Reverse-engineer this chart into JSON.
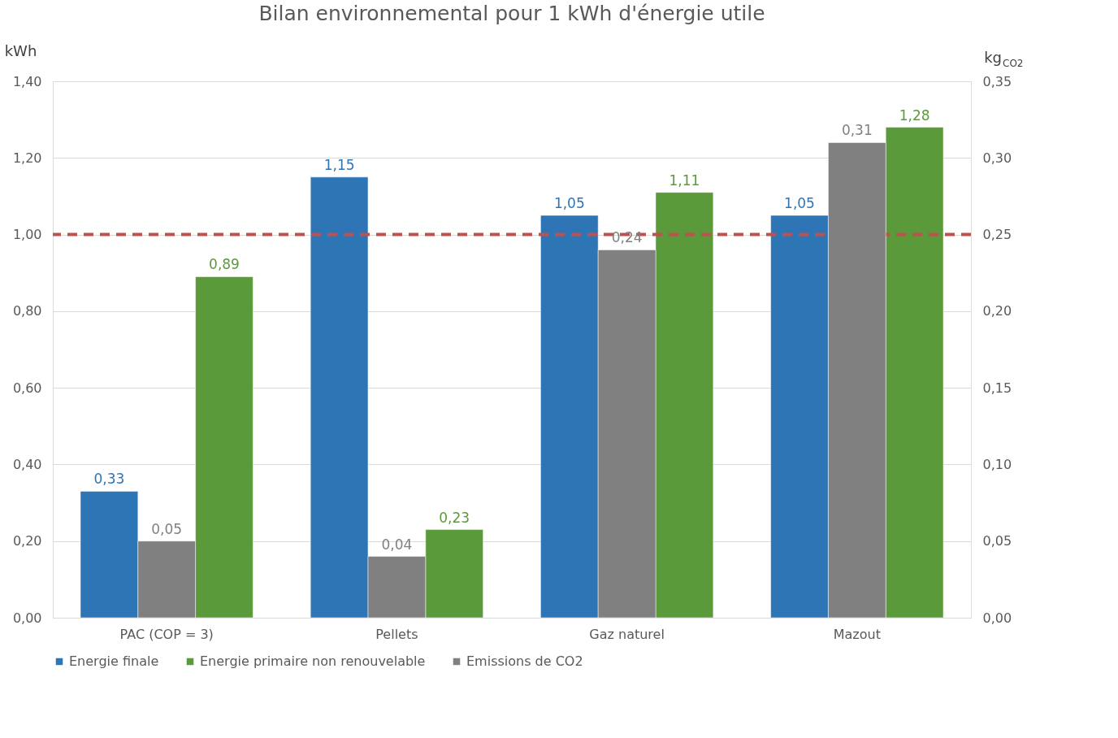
{
  "chart_data": {
    "type": "bar",
    "title": "Bilan environnemental pour 1 kWh d'énergie utile",
    "ylabel": "kWh",
    "y2label": "kg$_{CO2}$",
    "categories": [
      "PAC (COP = 3)",
      "Pellets",
      "Gaz naturel",
      "Mazout"
    ],
    "series": [
      {
        "name": "Energie finale",
        "color": "#2e75b6",
        "values": [
          0.33,
          1.15,
          1.05,
          1.05
        ],
        "value_labels": [
          "0,33",
          "1,15",
          "1,05",
          "1,05"
        ]
      },
      {
        "name": "Energie primaire non renouvelable",
        "color": "#5b9a3a",
        "values": [
          0.89,
          0.23,
          1.11,
          1.28
        ],
        "value_labels": [
          "0,89",
          "0,23",
          "1,11",
          "1,28"
        ]
      },
      {
        "name": "Emissions de CO2",
        "color": "#808080",
        "values": [
          0.05,
          0.04,
          0.24,
          0.31
        ],
        "value_labels": [
          "0,05",
          "0,04",
          "0,24",
          "0,31"
        ],
        "axis": "y2"
      }
    ],
    "ylim": [
      0,
      1.4
    ],
    "yticks": [
      {
        "value": 0,
        "label": "0,00"
      },
      {
        "value": 0.2,
        "label": "0,20"
      },
      {
        "value": 0.4,
        "label": "0,40"
      },
      {
        "value": 0.6,
        "label": "0,60"
      },
      {
        "value": 0.8,
        "label": "0,80"
      },
      {
        "value": 1.0,
        "label": "1,00"
      },
      {
        "value": 1.2,
        "label": "1,20"
      },
      {
        "value": 1.4,
        "label": "1,40"
      }
    ],
    "y2lim": [
      0,
      0.35
    ],
    "y2ticks": [
      {
        "value": 0,
        "label": "0,00"
      },
      {
        "value": 0.05,
        "label": "0,05"
      },
      {
        "value": 0.1,
        "label": "0,10"
      },
      {
        "value": 0.15,
        "label": "0,15"
      },
      {
        "value": 0.2,
        "label": "0,20"
      },
      {
        "value": 0.25,
        "label": "0,25"
      },
      {
        "value": 0.3,
        "label": "0,30"
      },
      {
        "value": 0.35,
        "label": "0,35"
      }
    ],
    "ref_lines": [
      {
        "axis": "y",
        "value": 1.0,
        "color": "#c0504d",
        "line_style": "dashed"
      }
    ],
    "grid": "y",
    "legend": "bottom"
  }
}
